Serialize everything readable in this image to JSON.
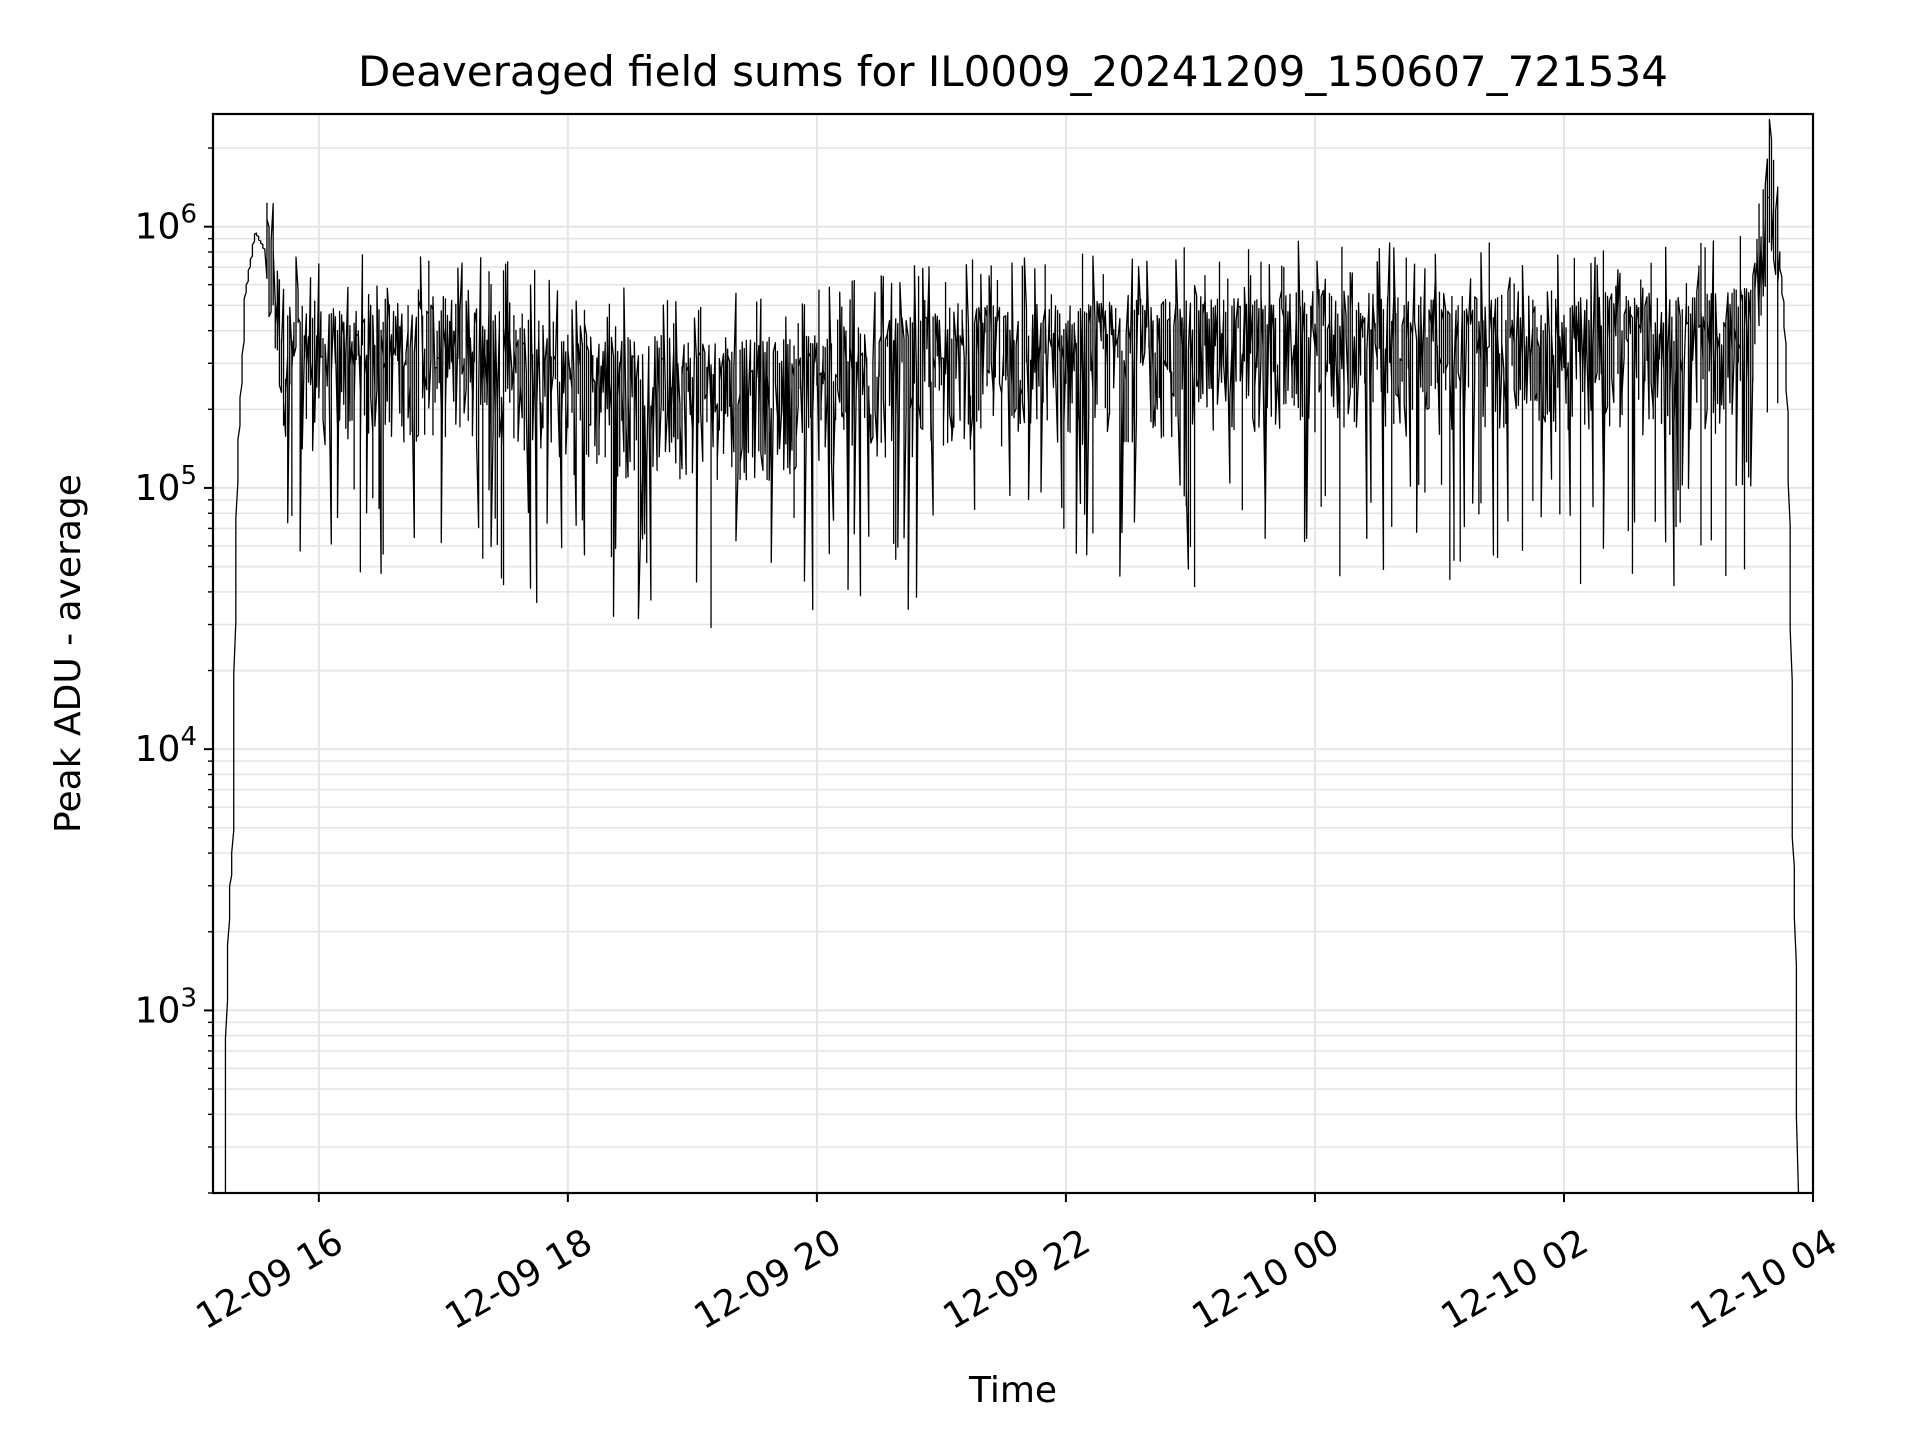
{
  "chart_data": {
    "type": "line",
    "title": "Deaveraged field sums for IL0009_20241209_150607_721534",
    "xlabel": "Time",
    "ylabel": "Peak ADU - average",
    "yscale": "log",
    "ylim": [
      200,
      2700000
    ],
    "xlim": [
      "2024-12-09 15:09",
      "2024-12-10 04:00"
    ],
    "grid": true,
    "line_color": "#000000",
    "grid_color": "#e5e5e5",
    "x_ticks": [
      {
        "label": "12-09 16",
        "value": "2024-12-09 16:00"
      },
      {
        "label": "12-09 18",
        "value": "2024-12-09 18:00"
      },
      {
        "label": "12-09 20",
        "value": "2024-12-09 20:00"
      },
      {
        "label": "12-09 22",
        "value": "2024-12-09 22:00"
      },
      {
        "label": "12-10 00",
        "value": "2024-12-10 00:00"
      },
      {
        "label": "12-10 02",
        "value": "2024-12-10 02:00"
      },
      {
        "label": "12-10 04",
        "value": "2024-12-10 04:00"
      }
    ],
    "y_ticks": [
      {
        "base": "10",
        "exp": "3",
        "value": 1000
      },
      {
        "base": "10",
        "exp": "4",
        "value": 10000
      },
      {
        "base": "10",
        "exp": "5",
        "value": 100000
      },
      {
        "base": "10",
        "exp": "6",
        "value": 1000000
      }
    ],
    "series": [
      {
        "x": [
          "2024-12-09 15:15",
          "2024-12-09 15:16",
          "2024-12-09 15:17",
          "2024-12-09 15:19",
          "2024-12-09 15:21",
          "2024-12-09 15:25",
          "2024-12-09 15:30",
          "2024-12-09 15:35",
          "2024-12-09 15:45",
          "2024-12-09 16:00",
          "2024-12-09 16:30",
          "2024-12-09 17:00",
          "2024-12-09 17:30",
          "2024-12-09 18:00",
          "2024-12-09 18:30",
          "2024-12-09 19:00",
          "2024-12-09 19:30",
          "2024-12-09 20:00",
          "2024-12-09 20:30",
          "2024-12-09 21:00",
          "2024-12-09 21:30",
          "2024-12-09 22:00",
          "2024-12-09 22:30",
          "2024-12-09 23:00",
          "2024-12-09 23:30",
          "2024-12-10 00:00",
          "2024-12-10 00:30",
          "2024-12-10 01:00",
          "2024-12-10 01:30",
          "2024-12-10 02:00",
          "2024-12-10 02:30",
          "2024-12-10 03:00",
          "2024-12-10 03:20",
          "2024-12-10 03:30",
          "2024-12-10 03:37",
          "2024-12-10 03:43",
          "2024-12-10 03:47",
          "2024-12-10 03:49",
          "2024-12-10 03:51",
          "2024-12-10 03:52",
          "2024-12-10 03:53"
        ],
        "values": [
          200,
          950,
          2200,
          4300,
          100000,
          550000,
          950000,
          800000,
          320000,
          300000,
          320000,
          340000,
          320000,
          250000,
          240000,
          240000,
          230000,
          250000,
          270000,
          300000,
          320000,
          320000,
          330000,
          340000,
          340000,
          360000,
          350000,
          350000,
          350000,
          360000,
          350000,
          350000,
          360000,
          400000,
          1200000,
          1100000,
          400000,
          100000,
          4300,
          2000,
          200
        ]
      }
    ]
  }
}
